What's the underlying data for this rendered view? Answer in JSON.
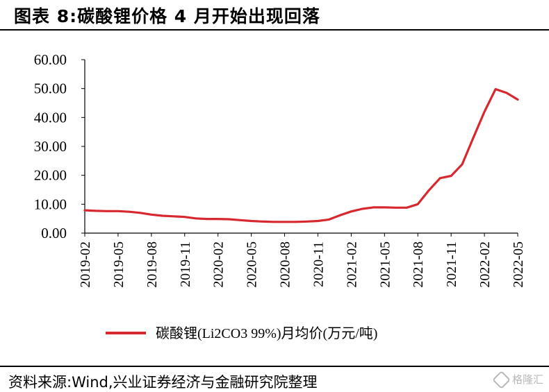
{
  "header": {
    "title": "图表 8:碳酸锂价格 4 月开始出现回落"
  },
  "footer": {
    "source": "资料来源:Wind,兴业证券经济与金融研究院整理",
    "watermark": "格隆汇"
  },
  "colors": {
    "series": "#d7282f",
    "axis": "#000000",
    "text": "#000000"
  },
  "chart_data": {
    "type": "line",
    "title": "",
    "xlabel": "",
    "ylabel": "",
    "ylim": [
      0,
      60
    ],
    "yticks": [
      "0.00",
      "10.00",
      "20.00",
      "30.00",
      "40.00",
      "50.00",
      "60.00"
    ],
    "grid": false,
    "legend_position": "bottom-center",
    "x_tick_labels": [
      "2019-02",
      "2019-05",
      "2019-08",
      "2019-11",
      "2020-02",
      "2020-05",
      "2020-08",
      "2020-11",
      "2021-02",
      "2021-05",
      "2021-08",
      "2021-11",
      "2022-02",
      "2022-05"
    ],
    "x": [
      "2019-02",
      "2019-03",
      "2019-04",
      "2019-05",
      "2019-06",
      "2019-07",
      "2019-08",
      "2019-09",
      "2019-10",
      "2019-11",
      "2019-12",
      "2020-01",
      "2020-02",
      "2020-03",
      "2020-04",
      "2020-05",
      "2020-06",
      "2020-07",
      "2020-08",
      "2020-09",
      "2020-10",
      "2020-11",
      "2020-12",
      "2021-01",
      "2021-02",
      "2021-03",
      "2021-04",
      "2021-05",
      "2021-06",
      "2021-07",
      "2021-08",
      "2021-09",
      "2021-10",
      "2021-11",
      "2021-12",
      "2022-01",
      "2022-02",
      "2022-03",
      "2022-04",
      "2022-05"
    ],
    "series": [
      {
        "name": "碳酸锂(Li2CO3 99%)月均价(万元/吨)",
        "values": [
          7.9,
          7.7,
          7.6,
          7.6,
          7.4,
          7.0,
          6.4,
          6.0,
          5.8,
          5.6,
          5.1,
          4.9,
          4.9,
          4.8,
          4.5,
          4.2,
          4.0,
          3.9,
          3.9,
          3.9,
          4.0,
          4.2,
          4.7,
          6.2,
          7.5,
          8.4,
          8.9,
          8.9,
          8.8,
          8.8,
          10.0,
          14.8,
          19.0,
          19.8,
          23.8,
          33.0,
          42.0,
          49.8,
          48.5,
          46.2
        ]
      }
    ]
  }
}
